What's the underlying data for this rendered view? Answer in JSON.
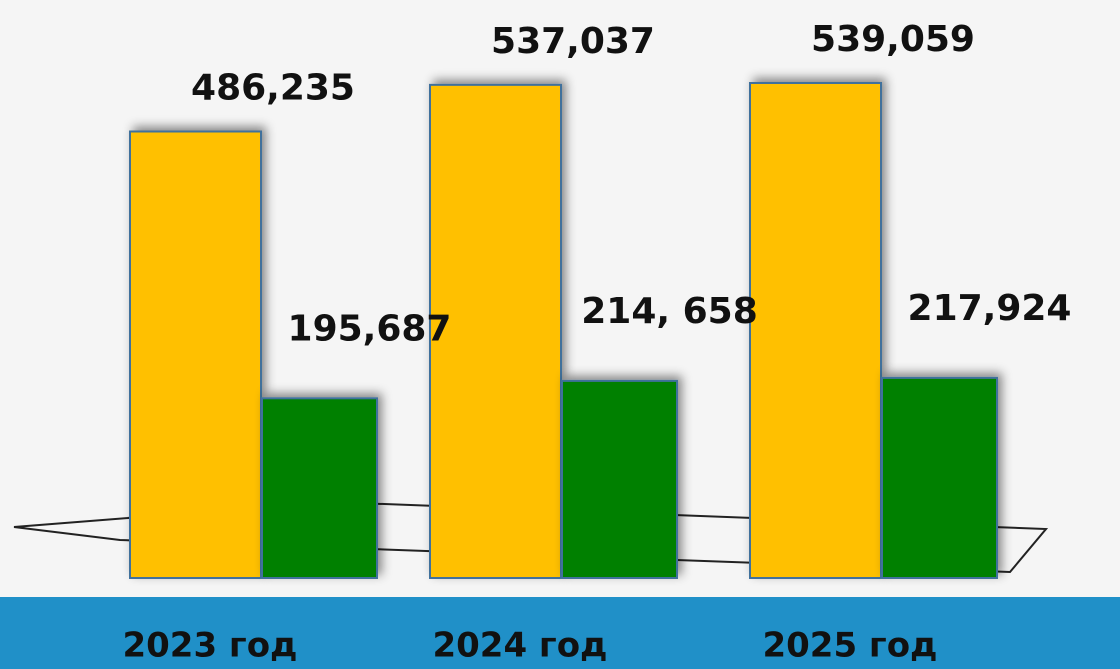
{
  "chart_data": {
    "type": "bar",
    "categories": [
      "2023 год",
      "2024 год",
      "2025 год"
    ],
    "series": [
      {
        "color": "#ffc000",
        "values": [
          486235,
          537037,
          539059
        ],
        "value_labels": [
          "486,235",
          "537,037",
          "539,059"
        ]
      },
      {
        "color": "#008000",
        "values": [
          195687,
          214658,
          217924
        ],
        "value_labels": [
          "195,687",
          "214, 658",
          "217,924"
        ]
      }
    ]
  }
}
